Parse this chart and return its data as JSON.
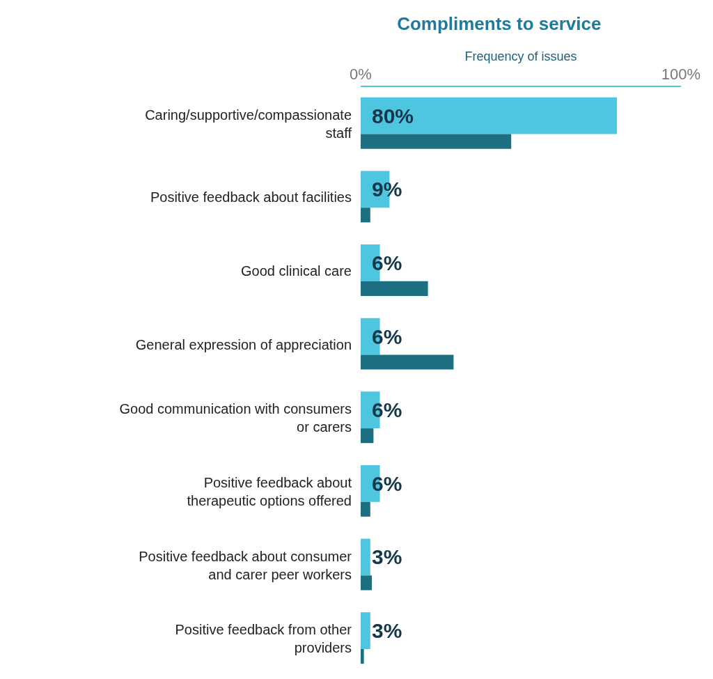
{
  "chart_data": {
    "type": "bar",
    "orientation": "horizontal",
    "title": "Compliments to service",
    "xlabel": "Frequency of issues",
    "categories": [
      "Caring/supportive/compassionate staff",
      "Positive feedback about facilities",
      "Good clinical care",
      "General expression of appreciation",
      "Good communication with consumers or carers",
      "Positive feedback about therapeutic options offered",
      "Positive feedback about consumer and carer peer workers",
      "Positive feedback from other providers"
    ],
    "series": [
      {
        "color": "#4fc6e0",
        "values": [
          80,
          9,
          6,
          6,
          6,
          6,
          3,
          3
        ],
        "value_labels": [
          "80%",
          "9%",
          "6%",
          "6%",
          "6%",
          "6%",
          "3%",
          "3%"
        ]
      },
      {
        "color": "#1b6f80",
        "values": [
          47,
          3,
          21,
          29,
          4,
          3,
          3.5,
          1
        ]
      }
    ],
    "xlim": [
      0,
      100
    ],
    "xticks": [
      {
        "value": 0,
        "label": "0%"
      },
      {
        "value": 100,
        "label": "100%"
      }
    ]
  }
}
